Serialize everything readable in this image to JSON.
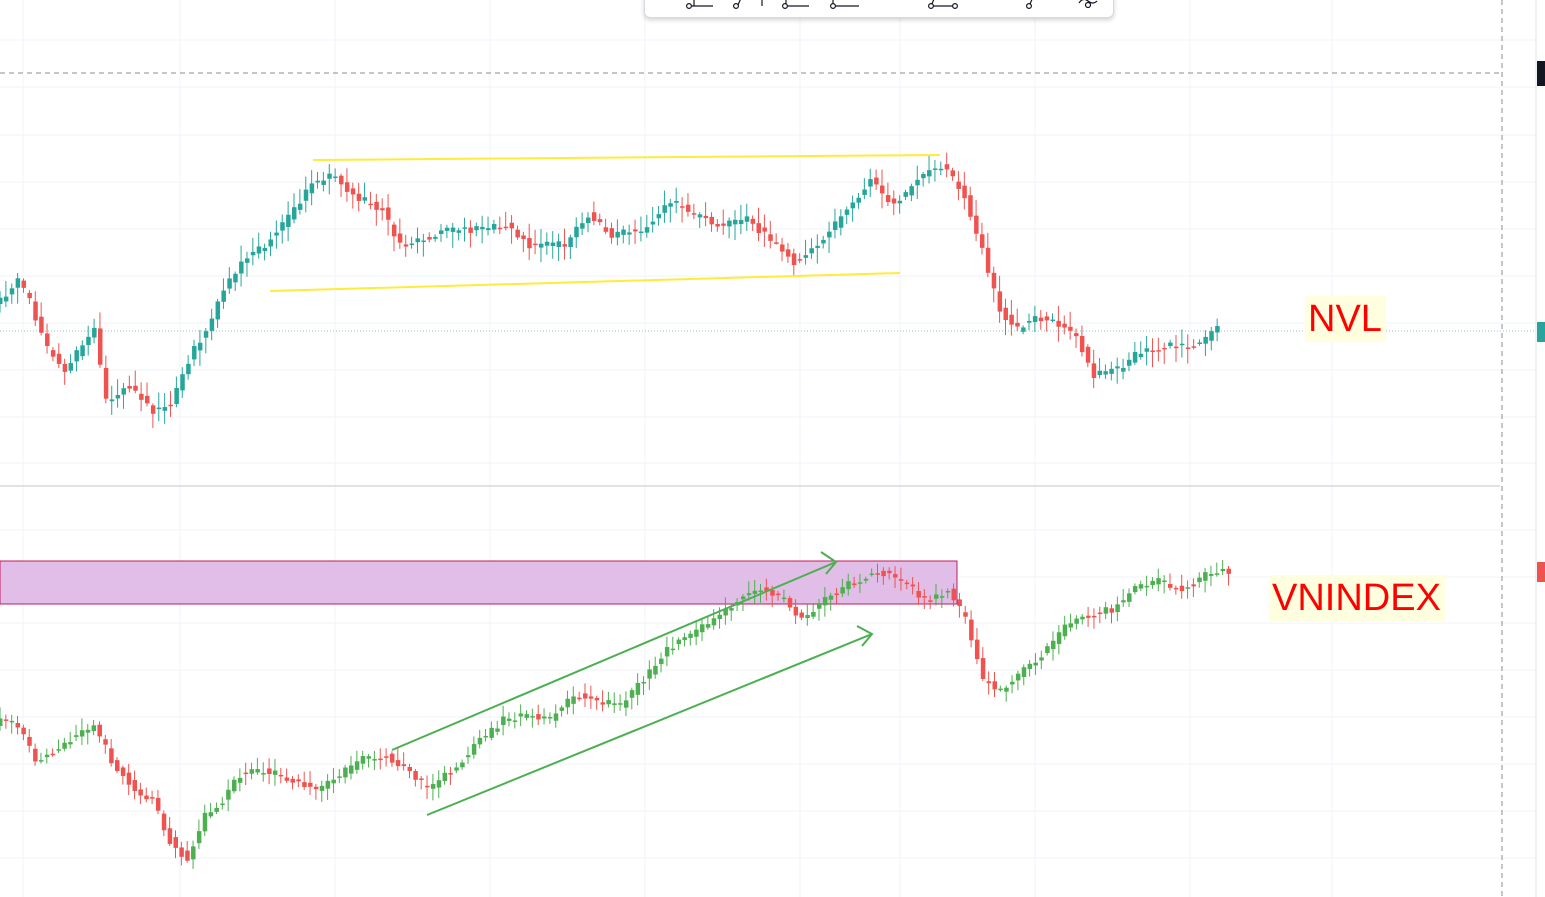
{
  "chart_data": [
    {
      "type": "candlestick",
      "symbol": "NVL",
      "pane": "top",
      "label_color": "#ff0000",
      "label_bg": "#ffffe0",
      "up_color": "#26a69a",
      "down_color": "#ef5350",
      "trendline_color": "#ffeb3b",
      "grid": true
    },
    {
      "type": "candlestick",
      "symbol": "VNINDEX",
      "pane": "bottom",
      "label_color": "#ff0000",
      "label_bg": "#ffffe0",
      "up_color": "#4caf50",
      "down_color": "#ef5350",
      "zone_color": "#e1bee7",
      "zone_border": "#c2185b",
      "arrow_color": "#4caf50",
      "grid": true
    }
  ],
  "toolbar": {
    "tools": [
      "anchored-line-icon",
      "point-icon",
      "ray-icon",
      "extended-line-icon",
      "path-icon",
      "node-icon",
      "settings-icon"
    ]
  }
}
